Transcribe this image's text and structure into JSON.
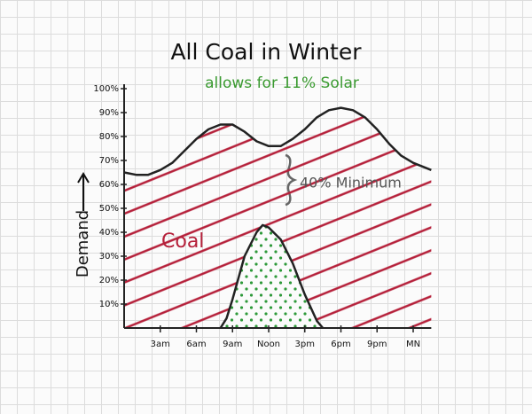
{
  "chart_data": {
    "type": "area",
    "title": "All Coal in Winter",
    "subtitle": "allows for 11% Solar",
    "ylabel": "Demand",
    "xlim": [
      0,
      25.5
    ],
    "xticks": [
      {
        "value": 3,
        "label": "3am"
      },
      {
        "value": 6,
        "label": "6am"
      },
      {
        "value": 9,
        "label": "9am"
      },
      {
        "value": 12,
        "label": "Noon"
      },
      {
        "value": 15,
        "label": "3pm"
      },
      {
        "value": 18,
        "label": "6pm"
      },
      {
        "value": 21,
        "label": "9pm"
      },
      {
        "value": 24,
        "label": "MN"
      }
    ],
    "ylim": [
      0,
      100
    ],
    "yticks": [
      {
        "value": 10,
        "label": "10%"
      },
      {
        "value": 20,
        "label": "20%"
      },
      {
        "value": 30,
        "label": "30%"
      },
      {
        "value": 40,
        "label": "40%"
      },
      {
        "value": 50,
        "label": "50%"
      },
      {
        "value": 60,
        "label": "60%"
      },
      {
        "value": 70,
        "label": "70%"
      },
      {
        "value": 80,
        "label": "80%"
      },
      {
        "value": 90,
        "label": "90%"
      },
      {
        "value": 100,
        "label": "100%"
      }
    ],
    "demand": {
      "color": "#222222",
      "hatch_color": "#b5203a",
      "x": [
        0,
        1,
        2,
        3,
        4,
        5,
        6,
        7,
        8,
        9,
        10,
        11,
        12,
        13,
        14,
        15,
        16,
        17,
        18,
        19,
        20,
        21,
        22,
        23,
        24,
        25.5
      ],
      "values": [
        65,
        64,
        64,
        66,
        69,
        74,
        79,
        83,
        85,
        85,
        82,
        78,
        76,
        76,
        79,
        83,
        88,
        91,
        92,
        91,
        88,
        83,
        77,
        72,
        69,
        66
      ]
    },
    "solar": {
      "color": "#222222",
      "dot_color": "#2e9a3a",
      "x": [
        8,
        8.5,
        9,
        10,
        11,
        11.5,
        12,
        13,
        14,
        15,
        16,
        16.5
      ],
      "values": [
        0,
        4,
        12,
        30,
        40,
        43,
        42,
        37,
        27,
        14,
        3,
        0
      ]
    },
    "annotations": [
      "40% Minimum",
      "Coal"
    ]
  }
}
